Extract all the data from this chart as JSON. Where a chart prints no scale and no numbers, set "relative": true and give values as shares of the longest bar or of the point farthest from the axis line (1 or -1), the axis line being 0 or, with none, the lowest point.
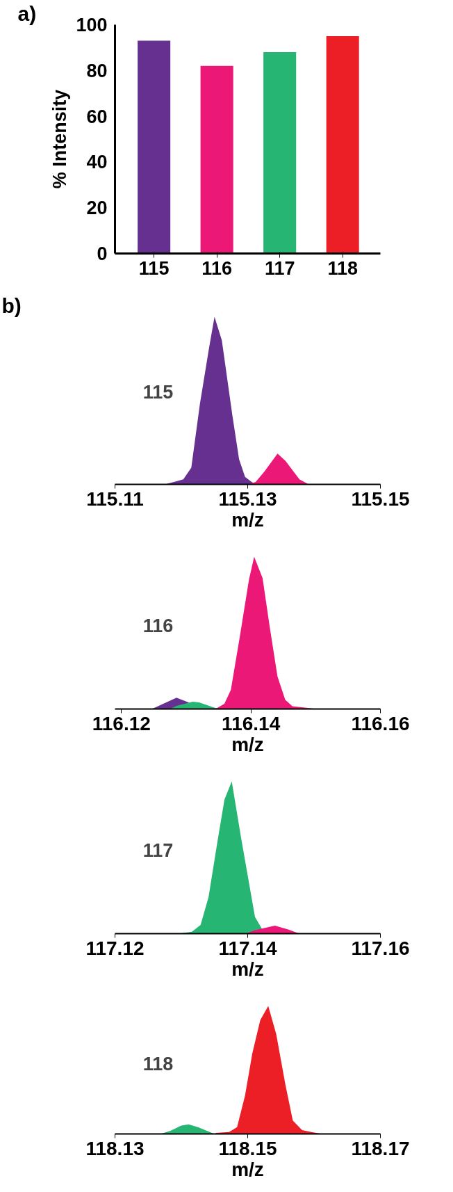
{
  "chart_data": [
    {
      "type": "bar",
      "ylabel": "% Intensity",
      "annotations": [
        "a)"
      ],
      "categories": [
        "115",
        "116",
        "117",
        "118"
      ],
      "values": [
        93,
        82,
        88,
        95
      ],
      "colors": [
        "#65308f",
        "#ec1878",
        "#27b573",
        "#ec1f27"
      ],
      "ylim": [
        0,
        100
      ],
      "yticks": [
        0,
        20,
        40,
        60,
        80,
        100
      ]
    },
    {
      "type": "area",
      "relative": true,
      "xlabel": "m/z",
      "annotations": [
        "b)",
        "115"
      ],
      "xlim": [
        115.11,
        115.15
      ],
      "xticks": [
        115.11,
        115.13,
        115.15
      ],
      "series": [
        {
          "color": "#65308f",
          "x": [
            115.1175,
            115.1203,
            115.1215,
            115.1228,
            115.1242,
            115.125,
            115.1261,
            115.1277,
            115.1287,
            115.1296,
            115.1306,
            115.1312
          ],
          "values": [
            0,
            0.03,
            0.1,
            0.48,
            0.82,
            1,
            0.86,
            0.41,
            0.15,
            0.045,
            0.015,
            0
          ]
        },
        {
          "color": "#ec1878",
          "x": [
            115.1301,
            115.1312,
            115.1325,
            115.1345,
            115.1357,
            115.1378,
            115.1392,
            115.1399
          ],
          "values": [
            0,
            0.015,
            0.076,
            0.184,
            0.14,
            0.03,
            0,
            0
          ]
        }
      ]
    },
    {
      "type": "area",
      "relative": true,
      "xlabel": "m/z",
      "annotations": [
        "116"
      ],
      "xlim": [
        116.119,
        116.16
      ],
      "xticks": [
        116.12,
        116.14,
        116.16
      ],
      "series": [
        {
          "color": "#65308f",
          "x": [
            116.1247,
            116.1285,
            116.1303,
            116.132
          ],
          "values": [
            0,
            0.074,
            0.045,
            0
          ]
        },
        {
          "color": "#27b573",
          "x": [
            116.1275,
            116.1285,
            116.131,
            116.132,
            116.1345,
            116.1352
          ],
          "values": [
            0,
            0.02,
            0.048,
            0.043,
            0.007,
            0
          ]
        },
        {
          "color": "#ec1878",
          "x": [
            116.1345,
            116.1359,
            116.1369,
            116.1383,
            116.1397,
            116.1405,
            116.1418,
            116.1429,
            116.1441,
            116.1453,
            116.1464,
            116.1481,
            116.1502
          ],
          "values": [
            0,
            0.034,
            0.126,
            0.48,
            0.85,
            1,
            0.86,
            0.54,
            0.215,
            0.06,
            0.018,
            0.01,
            0
          ]
        }
      ]
    },
    {
      "type": "area",
      "relative": true,
      "xlabel": "m/z",
      "annotations": [
        "117"
      ],
      "xlim": [
        117.12,
        117.16
      ],
      "xticks": [
        117.12,
        117.14,
        117.16
      ],
      "series": [
        {
          "color": "#27b573",
          "x": [
            117.1295,
            117.1316,
            117.1329,
            117.1341,
            117.1355,
            117.1365,
            117.1376,
            117.139,
            117.1411,
            117.1422,
            117.1425
          ],
          "values": [
            0,
            0.012,
            0.057,
            0.24,
            0.62,
            0.88,
            1,
            0.63,
            0.11,
            0.027,
            0
          ]
        },
        {
          "color": "#ec1878",
          "x": [
            117.1397,
            117.1411,
            117.1441,
            117.1461,
            117.1476,
            117.1492
          ],
          "values": [
            0,
            0.023,
            0.053,
            0.027,
            0.003,
            0
          ]
        }
      ]
    },
    {
      "type": "area",
      "relative": true,
      "xlabel": "m/z",
      "annotations": [
        "118"
      ],
      "xlim": [
        118.13,
        118.17
      ],
      "xticks": [
        118.13,
        118.15,
        118.17
      ],
      "series": [
        {
          "color": "#27b573",
          "x": [
            118.1368,
            118.1383,
            118.14,
            118.1411,
            118.1425,
            118.145
          ],
          "values": [
            0,
            0.023,
            0.065,
            0.075,
            0.053,
            0
          ]
        },
        {
          "color": "#ec1f27",
          "x": [
            118.1452,
            118.1472,
            118.1484,
            118.1496,
            118.1507,
            118.1519,
            118.1531,
            118.1543,
            118.1557,
            118.1568,
            118.1582,
            118.1596,
            118.1612
          ],
          "values": [
            0.008,
            0.015,
            0.053,
            0.3,
            0.63,
            0.89,
            1,
            0.78,
            0.38,
            0.105,
            0.03,
            0.015,
            0
          ]
        }
      ]
    }
  ]
}
